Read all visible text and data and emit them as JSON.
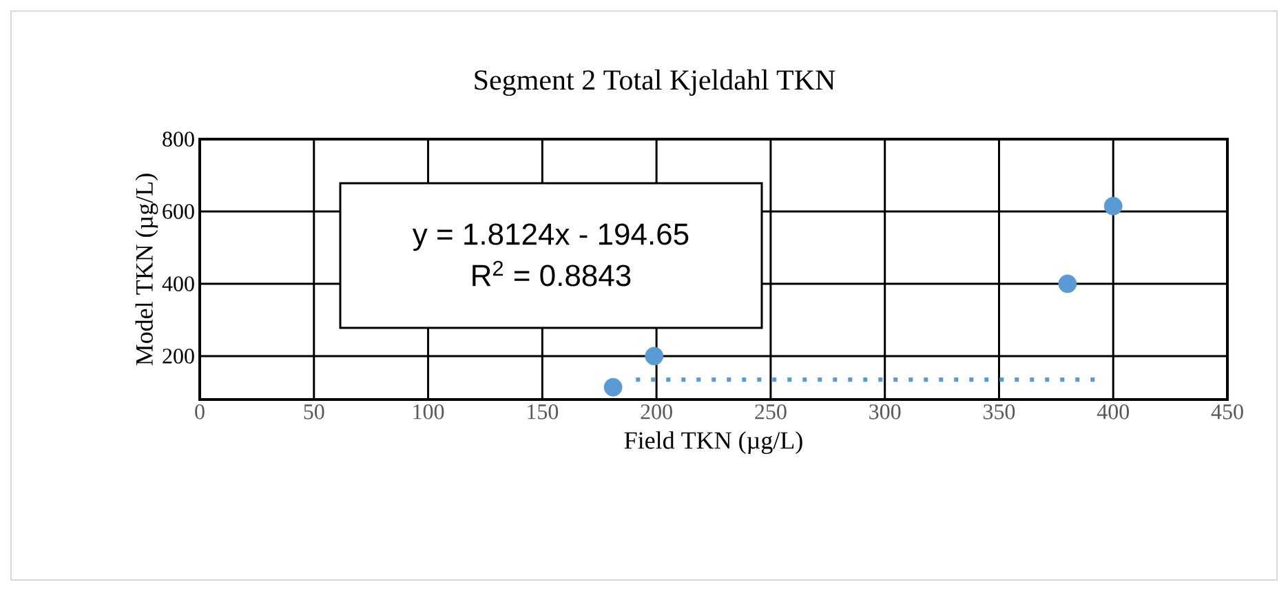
{
  "chart_data": {
    "type": "scatter",
    "title": "Segment 2 Total Kjeldahl TKN",
    "xlabel": "Field TKN (µg/L)",
    "ylabel": "Model TKN (µg/L)",
    "xlim": [
      0,
      450
    ],
    "xticks": [
      0,
      50,
      100,
      150,
      200,
      250,
      300,
      350,
      400,
      450
    ],
    "ylim": [
      80,
      800
    ],
    "yticks": [
      200,
      400,
      600,
      800
    ],
    "grid": true,
    "legend": false,
    "marker": "circle",
    "series": [
      {
        "color": "#5b9bd5",
        "x": [
          181,
          199,
          380,
          400
        ],
        "values": [
          114,
          200,
          400,
          615
        ]
      },
      {
        "type": "line",
        "color": "#5b9bd5",
        "line_style": "dotted",
        "marker": "none",
        "x": [
          191,
          394
        ],
        "values": [
          135,
          135
        ]
      }
    ],
    "annotations": [
      "y = 1.8124x - 194.65",
      "R$^{2}$ = 0.8843"
    ]
  }
}
